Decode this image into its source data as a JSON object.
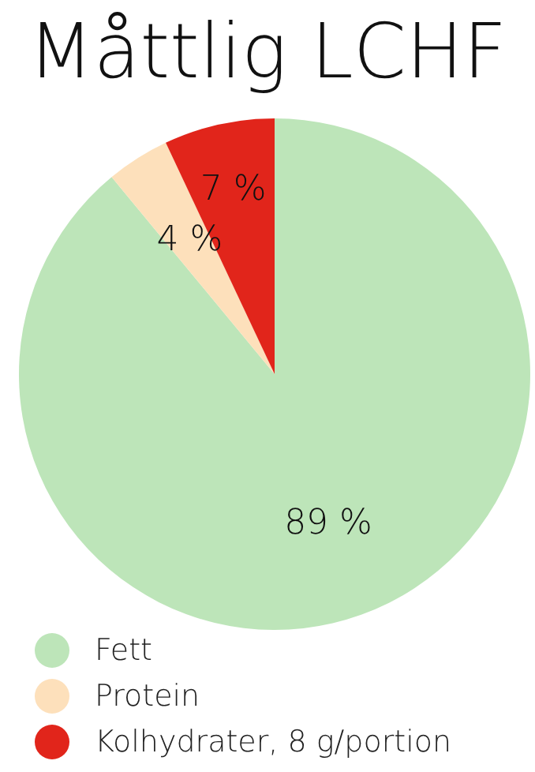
{
  "chart_data": {
    "type": "pie",
    "title": "Måttlig LCHF",
    "categories": [
      "Fett",
      "Protein",
      "Kolhydrater, 8 g/portion"
    ],
    "values": [
      89,
      4,
      7
    ],
    "colors": [
      "#bde5b9",
      "#fde0bb",
      "#e1251b"
    ],
    "value_labels": [
      "89 %",
      "4 %",
      "7 %"
    ],
    "legend": "bottom"
  }
}
